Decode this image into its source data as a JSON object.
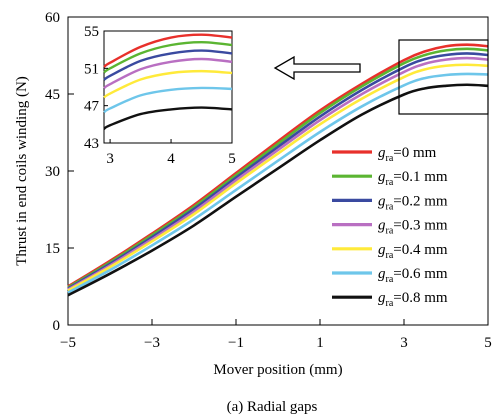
{
  "chart_data": {
    "type": "line",
    "title": "",
    "caption": "(a) Radial gaps",
    "xlabel": "Mover position (mm)",
    "ylabel": "Thrust in end coils winding (N)",
    "xlim": [
      -5,
      5
    ],
    "ylim": [
      0,
      60
    ],
    "x_ticks": [
      "−5",
      "−3",
      "−1",
      "1",
      "3",
      "5"
    ],
    "y_ticks": [
      "0",
      "15",
      "30",
      "45",
      "60"
    ],
    "grid": false,
    "legend_position": "lower-right",
    "x": [
      -5,
      -4,
      -3,
      -2,
      -1,
      0,
      1,
      2,
      3,
      3.5,
      4,
      4.5,
      5
    ],
    "series": [
      {
        "name_main": "g",
        "name_sub": "ra",
        "name_rest": "=0 mm",
        "color": "#e8302b",
        "values": [
          7.5,
          12.5,
          17.8,
          23.4,
          29.6,
          35.8,
          41.8,
          47.0,
          51.6,
          53.3,
          54.3,
          54.6,
          54.3
        ]
      },
      {
        "name_main": "g",
        "name_sub": "ra",
        "name_rest": "=0.1 mm",
        "color": "#5bb532",
        "values": [
          7.3,
          12.2,
          17.5,
          23.0,
          29.2,
          35.3,
          41.3,
          46.5,
          51.0,
          52.6,
          53.5,
          53.8,
          53.5
        ]
      },
      {
        "name_main": "g",
        "name_sub": "ra",
        "name_rest": "=0.2 mm",
        "color": "#3a4aa0",
        "values": [
          7.1,
          11.9,
          17.1,
          22.6,
          28.7,
          34.7,
          40.6,
          45.8,
          50.2,
          51.8,
          52.6,
          52.9,
          52.6
        ]
      },
      {
        "name_main": "g",
        "name_sub": "ra",
        "name_rest": "=0.3 mm",
        "color": "#b96fc2",
        "values": [
          6.9,
          11.6,
          16.7,
          22.1,
          28.2,
          34.1,
          39.9,
          45.0,
          49.3,
          50.9,
          51.7,
          52.0,
          51.7
        ]
      },
      {
        "name_main": "g",
        "name_sub": "ra",
        "name_rest": "=0.4 mm",
        "color": "#ffea3a",
        "values": [
          6.7,
          11.3,
          16.3,
          21.6,
          27.6,
          33.4,
          39.1,
          44.1,
          48.3,
          49.8,
          50.5,
          50.7,
          50.5
        ]
      },
      {
        "name_main": "g",
        "name_sub": "ra",
        "name_rest": "=0.6 mm",
        "color": "#6ec6ea",
        "values": [
          6.3,
          10.7,
          15.5,
          20.6,
          26.3,
          32.0,
          37.6,
          42.6,
          46.7,
          48.1,
          48.7,
          48.9,
          48.8
        ]
      },
      {
        "name_main": "g",
        "name_sub": "ra",
        "name_rest": "=0.8 mm",
        "color": "#111111",
        "values": [
          5.8,
          10.0,
          14.5,
          19.4,
          25.0,
          30.5,
          36.0,
          41.0,
          44.9,
          46.1,
          46.6,
          46.8,
          46.6
        ]
      }
    ],
    "inset": {
      "xlim": [
        2.9,
        5
      ],
      "ylim": [
        43,
        55
      ],
      "x_ticks": [
        "3",
        "4",
        "5"
      ],
      "y_ticks": [
        "43",
        "47",
        "51",
        "55"
      ]
    }
  }
}
